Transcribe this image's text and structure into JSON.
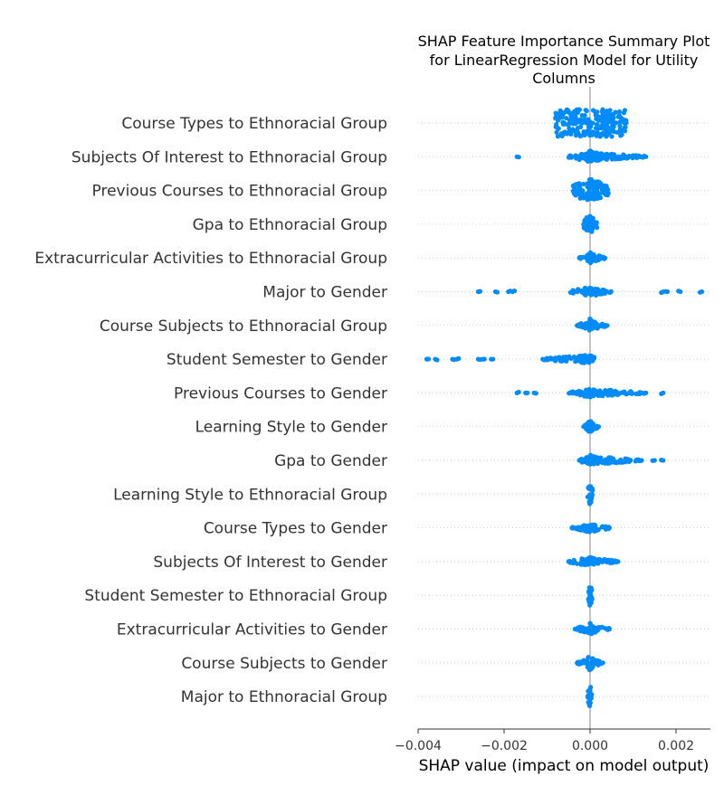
{
  "chart_data": {
    "type": "scatter",
    "subtype": "shap-beeswarm",
    "title": [
      "SHAP Feature Importance Summary Plot",
      "for LinearRegression Model for Utility",
      "Columns"
    ],
    "xlabel": "SHAP value (impact on model output)",
    "xlim": [
      -0.004,
      0.0028
    ],
    "xticks": [
      -0.004,
      -0.002,
      0.0,
      0.002
    ],
    "xtick_labels": [
      "−0.004",
      "−0.002",
      "0.000",
      "0.002"
    ],
    "dot_color": "#008bfb",
    "grid": "dotted-rows",
    "features": [
      {
        "name": "Course Types to Ethnoracial Group",
        "extra": [],
        "core": [
          -0.00082,
          0.00085
        ],
        "dense": 1.0
      },
      {
        "name": "Subjects Of Interest to Ethnoracial Group",
        "extra": [
          -0.0017,
          0.0013
        ],
        "core": [
          -0.00015,
          0.00015
        ],
        "dense": 0.45
      },
      {
        "name": "Previous Courses to Ethnoracial Group",
        "extra": [],
        "core": [
          -0.0004,
          0.00043
        ],
        "dense": 0.9
      },
      {
        "name": "Gpa to Ethnoracial Group",
        "extra": [],
        "core": [
          -0.00015,
          0.00017
        ],
        "dense": 0.7
      },
      {
        "name": "Extracurricular Activities to Ethnoracial Group",
        "extra": [
          -0.00025,
          0.00035
        ],
        "core": [
          -8e-05,
          8e-05
        ],
        "dense": 0.5
      },
      {
        "name": "Major to Gender",
        "extra": [
          -0.0026,
          -0.0022,
          -0.0019,
          -0.0018,
          0.0017,
          0.0018,
          0.0021,
          0.0026
        ],
        "core": [
          -0.0001,
          0.0001
        ],
        "dense": 0.3
      },
      {
        "name": "Course Subjects to Ethnoracial Group",
        "extra": [
          -0.0003,
          0.0004
        ],
        "core": [
          -8e-05,
          8e-05
        ],
        "dense": 0.5
      },
      {
        "name": "Student Semester to Gender",
        "extra": [
          -0.0038,
          -0.0036,
          -0.0032,
          -0.0031,
          -0.0026,
          -0.0025,
          -0.0023,
          -0.0011,
          -0.001
        ],
        "core": [
          -0.0001,
          0.0001
        ],
        "dense": 0.35
      },
      {
        "name": "Previous Courses to Gender",
        "extra": [
          -0.0017,
          -0.0015,
          -0.0013,
          0.0012,
          0.0013,
          0.0017
        ],
        "core": [
          -8e-05,
          8e-05
        ],
        "dense": 0.35
      },
      {
        "name": "Learning Style to Gender",
        "extra": [
          -0.00015,
          0.0002
        ],
        "core": [
          -7e-05,
          7e-05
        ],
        "dense": 0.5
      },
      {
        "name": "Gpa to Gender",
        "extra": [
          -0.00025,
          0.00055,
          0.0011,
          0.0012,
          0.0015,
          0.0017
        ],
        "core": [
          -8e-05,
          8e-05
        ],
        "dense": 0.45
      },
      {
        "name": "Learning Style to Ethnoracial Group",
        "extra": [],
        "core": [
          -6e-05,
          6e-05
        ],
        "dense": 0.85
      },
      {
        "name": "Course Types to Gender",
        "extra": [
          -0.00042,
          0.00045
        ],
        "core": [
          -8e-05,
          8e-05
        ],
        "dense": 0.4
      },
      {
        "name": "Subjects Of Interest to Gender",
        "extra": [
          -0.0005,
          0.00065
        ],
        "core": [
          -8e-05,
          8e-05
        ],
        "dense": 0.45
      },
      {
        "name": "Student Semester to Ethnoracial Group",
        "extra": [],
        "core": [
          -5e-05,
          5e-05
        ],
        "dense": 0.85
      },
      {
        "name": "Extracurricular Activities to Gender",
        "extra": [
          -0.00035,
          0.00045
        ],
        "core": [
          -8e-05,
          8e-05
        ],
        "dense": 0.5
      },
      {
        "name": "Course Subjects to Gender",
        "extra": [
          -0.0003,
          0.0003
        ],
        "core": [
          -8e-05,
          8e-05
        ],
        "dense": 0.6
      },
      {
        "name": "Major to Ethnoracial Group",
        "extra": [],
        "core": [
          -5e-05,
          5e-05
        ],
        "dense": 0.85
      }
    ]
  }
}
